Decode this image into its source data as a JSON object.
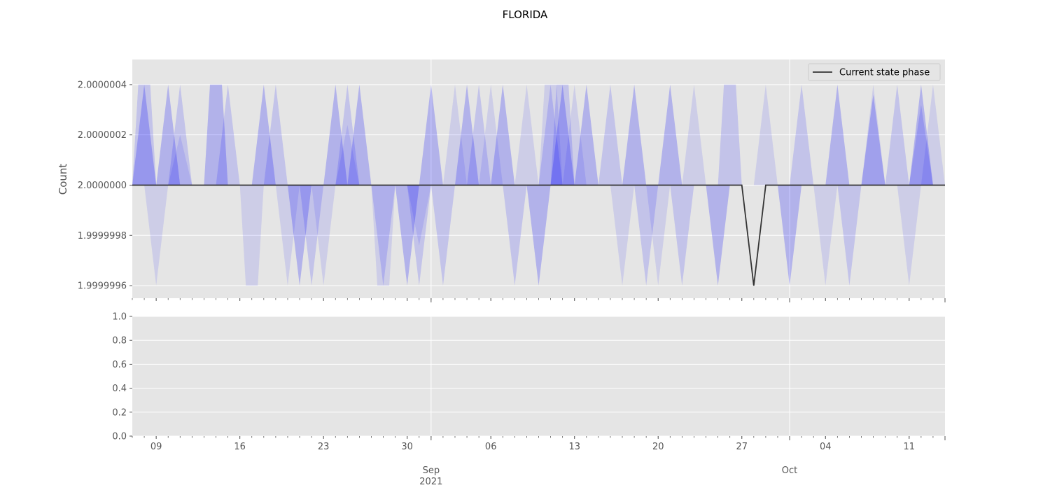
{
  "title": "FLORIDA",
  "chart_data": [
    {
      "type": "line",
      "ylabel": "Count",
      "ylim": [
        1.99999955,
        2.0000005
      ],
      "yticks": [
        "2.0000004",
        "2.0000002",
        "2.0000000",
        "1.9999998",
        "1.9999996"
      ],
      "grid": true,
      "legend": {
        "position": "top-right",
        "entries": [
          "Current state phase"
        ]
      },
      "x_start": "2021-08-07",
      "x_end": "2021-10-14",
      "series": [
        {
          "name": "Current state phase",
          "color": "#333333",
          "x": [
            "2021-08-07",
            "2021-09-27",
            "2021-09-28",
            "2021-09-29",
            "2021-10-14"
          ],
          "values": [
            2.0,
            2.0,
            1.9999996,
            2.0,
            2.0
          ]
        }
      ],
      "bands": {
        "color": "#0000ff",
        "note_color_light": "#b4b4f0",
        "spikes": [
          {
            "date": "2021-08-08",
            "dir": 1
          },
          {
            "date": "2021-08-08",
            "dir": 1,
            "flat": true
          },
          {
            "date": "2021-08-09",
            "dir": -1
          },
          {
            "date": "2021-08-10",
            "dir": 1
          },
          {
            "date": "2021-08-11",
            "dir": 1
          },
          {
            "date": "2021-08-11",
            "dir": 0.5
          },
          {
            "date": "2021-08-14",
            "dir": 1,
            "flat": true
          },
          {
            "date": "2021-08-15",
            "dir": 1
          },
          {
            "date": "2021-08-17",
            "dir": -1,
            "flat": true
          },
          {
            "date": "2021-08-18",
            "dir": 1
          },
          {
            "date": "2021-08-19",
            "dir": 1
          },
          {
            "date": "2021-08-20",
            "dir": -1
          },
          {
            "date": "2021-08-21",
            "dir": -1
          },
          {
            "date": "2021-08-22",
            "dir": -1
          },
          {
            "date": "2021-08-23",
            "dir": -1
          },
          {
            "date": "2021-08-24",
            "dir": 1
          },
          {
            "date": "2021-08-25",
            "dir": 1
          },
          {
            "date": "2021-08-25",
            "dir": 0.6
          },
          {
            "date": "2021-08-26",
            "dir": 1
          },
          {
            "date": "2021-08-28",
            "dir": -1
          },
          {
            "date": "2021-08-28",
            "dir": -1,
            "flat": true
          },
          {
            "date": "2021-08-30",
            "dir": -1
          },
          {
            "date": "2021-08-31",
            "dir": -1
          },
          {
            "date": "2021-08-31",
            "dir": -0.6
          },
          {
            "date": "2021-09-01",
            "dir": 1
          },
          {
            "date": "2021-09-02",
            "dir": -1
          },
          {
            "date": "2021-09-03",
            "dir": 1
          },
          {
            "date": "2021-09-04",
            "dir": 1
          },
          {
            "date": "2021-09-05",
            "dir": 1
          },
          {
            "date": "2021-09-06",
            "dir": 1
          },
          {
            "date": "2021-09-07",
            "dir": 1
          },
          {
            "date": "2021-09-08",
            "dir": -1
          },
          {
            "date": "2021-09-09",
            "dir": 1
          },
          {
            "date": "2021-09-10",
            "dir": -1
          },
          {
            "date": "2021-09-11",
            "dir": 1
          },
          {
            "date": "2021-09-11",
            "dir": 1,
            "flat": true
          },
          {
            "date": "2021-09-12",
            "dir": 1
          },
          {
            "date": "2021-09-12",
            "dir": 1,
            "flat": true
          },
          {
            "date": "2021-09-13",
            "dir": 1
          },
          {
            "date": "2021-09-14",
            "dir": 1
          },
          {
            "date": "2021-09-16",
            "dir": 1
          },
          {
            "date": "2021-09-17",
            "dir": -1
          },
          {
            "date": "2021-09-18",
            "dir": 1
          },
          {
            "date": "2021-09-19",
            "dir": -1
          },
          {
            "date": "2021-09-20",
            "dir": -1
          },
          {
            "date": "2021-09-21",
            "dir": 1
          },
          {
            "date": "2021-09-22",
            "dir": -1
          },
          {
            "date": "2021-09-23",
            "dir": 1
          },
          {
            "date": "2021-09-25",
            "dir": -1
          },
          {
            "date": "2021-09-26",
            "dir": 1,
            "flat": true
          },
          {
            "date": "2021-09-29",
            "dir": 1
          },
          {
            "date": "2021-10-01",
            "dir": -1
          },
          {
            "date": "2021-10-02",
            "dir": 1
          },
          {
            "date": "2021-10-04",
            "dir": -1
          },
          {
            "date": "2021-10-05",
            "dir": 1
          },
          {
            "date": "2021-10-06",
            "dir": -1
          },
          {
            "date": "2021-10-08",
            "dir": 1
          },
          {
            "date": "2021-10-08",
            "dir": 0.9
          },
          {
            "date": "2021-10-10",
            "dir": 1
          },
          {
            "date": "2021-10-11",
            "dir": -1
          },
          {
            "date": "2021-10-12",
            "dir": 1
          },
          {
            "date": "2021-10-12",
            "dir": 0.8
          },
          {
            "date": "2021-10-13",
            "dir": 1
          }
        ]
      }
    },
    {
      "type": "line",
      "ylim": [
        0.0,
        1.0
      ],
      "yticks": [
        "1.0",
        "0.8",
        "0.6",
        "0.4",
        "0.2",
        "0.0"
      ],
      "grid": true,
      "series": []
    }
  ],
  "xaxis": {
    "ticks": [
      {
        "date": "2021-08-09",
        "label": "09"
      },
      {
        "date": "2021-08-16",
        "label": "16"
      },
      {
        "date": "2021-08-23",
        "label": "23"
      },
      {
        "date": "2021-08-30",
        "label": "30"
      },
      {
        "date": "2021-09-06",
        "label": "06"
      },
      {
        "date": "2021-09-13",
        "label": "13"
      },
      {
        "date": "2021-09-20",
        "label": "20"
      },
      {
        "date": "2021-09-27",
        "label": "27"
      },
      {
        "date": "2021-10-04",
        "label": "04"
      },
      {
        "date": "2021-10-11",
        "label": "11"
      }
    ],
    "major": [
      {
        "date": "2021-09-01",
        "label": "Sep",
        "sublabel": "2021"
      },
      {
        "date": "2021-10-01",
        "label": "Oct",
        "sublabel": ""
      }
    ]
  }
}
